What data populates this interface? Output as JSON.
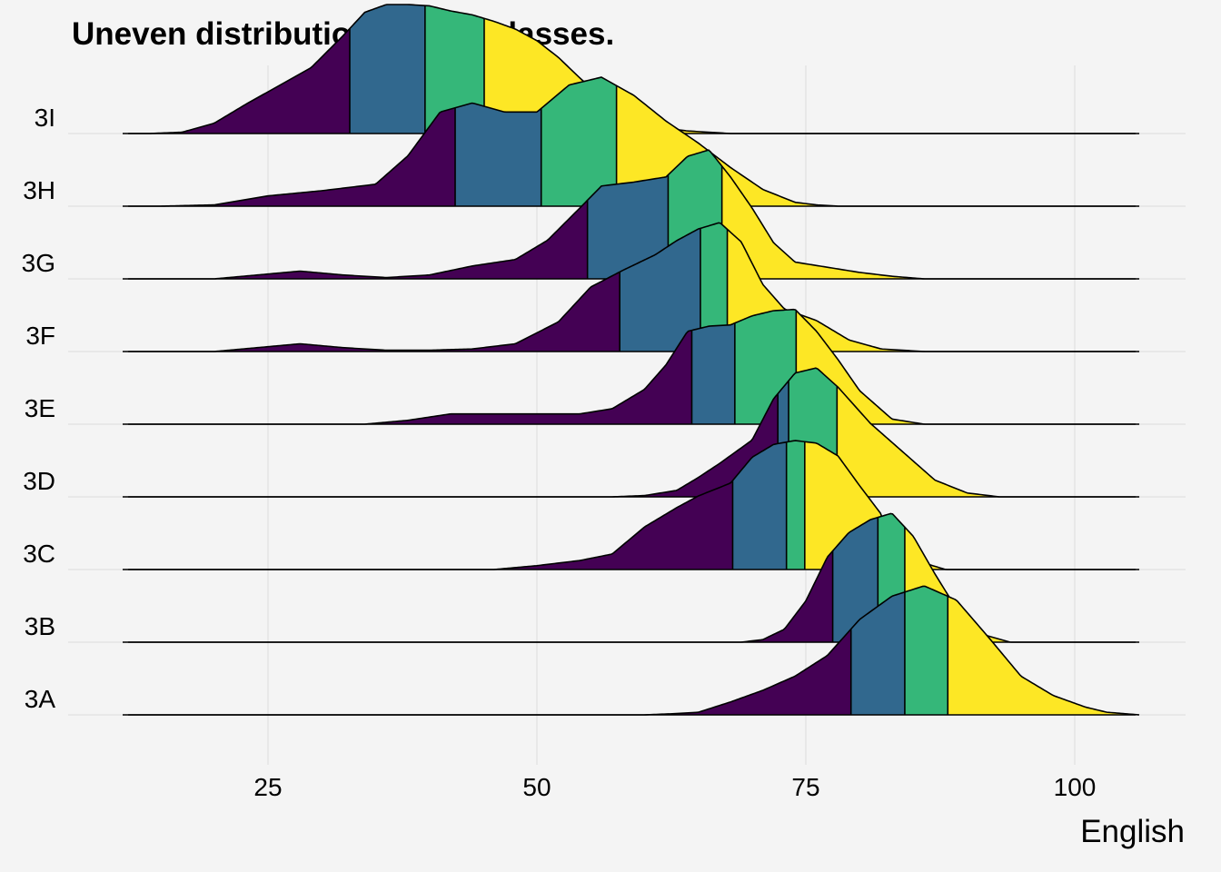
{
  "chart_data": {
    "type": "area",
    "subtype": "ridgeline",
    "title": "Uneven distribution across classes.",
    "xlabel": "English",
    "ylabel": "",
    "xlim": [
      5,
      106
    ],
    "x_ticks": [
      25,
      50,
      75,
      100
    ],
    "grid": true,
    "legend": "none",
    "colors": [
      "#440154",
      "#31688e",
      "#35b779",
      "#fde725"
    ],
    "axis_color": "#000000",
    "grid_color": "#e3e3e3",
    "background": "#f4f4f4",
    "categories": [
      "3A",
      "3B",
      "3C",
      "3D",
      "3E",
      "3F",
      "3G",
      "3H",
      "3I"
    ],
    "series": [
      {
        "name": "3A",
        "quartiles": [
          79.2,
          84.2,
          88.2
        ],
        "x": [
          12,
          60,
          63,
          65,
          68,
          71,
          74,
          77,
          80,
          83,
          86,
          89,
          92,
          95,
          98,
          101,
          103,
          106
        ],
        "density": [
          0,
          0,
          0.01,
          0.02,
          0.1,
          0.19,
          0.3,
          0.46,
          0.74,
          0.92,
          1.0,
          0.89,
          0.6,
          0.3,
          0.15,
          0.06,
          0.02,
          0
        ]
      },
      {
        "name": "3B",
        "quartiles": [
          77.5,
          81.7,
          84.2
        ],
        "x": [
          12,
          69,
          71,
          73,
          75,
          77,
          79,
          81,
          83,
          85,
          87,
          89,
          91,
          94,
          106
        ],
        "density": [
          0,
          0,
          0.02,
          0.1,
          0.32,
          0.66,
          0.85,
          0.95,
          1.0,
          0.82,
          0.53,
          0.26,
          0.07,
          0,
          0
        ]
      },
      {
        "name": "3C",
        "quartiles": [
          68.2,
          73.2,
          74.9
        ],
        "x": [
          12,
          46,
          50,
          54,
          57,
          60,
          63,
          65,
          68,
          70,
          72,
          74,
          76,
          78,
          80,
          82,
          83,
          86,
          88,
          106
        ],
        "density": [
          0,
          0,
          0.03,
          0.07,
          0.12,
          0.33,
          0.48,
          0.57,
          0.67,
          0.87,
          0.97,
          1.0,
          0.98,
          0.88,
          0.65,
          0.43,
          0.17,
          0.05,
          0,
          0
        ]
      },
      {
        "name": "3D",
        "quartiles": [
          72.4,
          73.4,
          77.9
        ],
        "x": [
          12,
          57,
          60,
          63,
          65,
          67,
          70,
          72,
          74,
          76,
          78,
          81,
          84,
          87,
          90,
          93,
          106
        ],
        "density": [
          0,
          0,
          0.01,
          0.05,
          0.15,
          0.26,
          0.44,
          0.76,
          0.96,
          1.0,
          0.85,
          0.57,
          0.35,
          0.13,
          0.03,
          0,
          0
        ]
      },
      {
        "name": "3E",
        "quartiles": [
          64.4,
          68.4,
          74.1
        ],
        "x": [
          12,
          34,
          38,
          42,
          46,
          50,
          54,
          57,
          60,
          62,
          64,
          66,
          68,
          70,
          72,
          74,
          76,
          78,
          80,
          83,
          86,
          106
        ],
        "density": [
          0,
          0,
          0.03,
          0.08,
          0.08,
          0.08,
          0.08,
          0.12,
          0.27,
          0.46,
          0.72,
          0.76,
          0.77,
          0.84,
          0.88,
          0.89,
          0.72,
          0.5,
          0.26,
          0.04,
          0,
          0
        ]
      },
      {
        "name": "3F",
        "quartiles": [
          57.7,
          65.2,
          67.7
        ],
        "x": [
          12,
          20,
          24,
          28,
          32,
          36,
          40,
          44,
          48,
          52,
          55,
          58,
          61,
          63,
          65,
          67,
          69,
          71,
          73,
          76,
          79,
          82,
          86,
          106
        ],
        "density": [
          0,
          0,
          0.03,
          0.06,
          0.03,
          0.01,
          0.01,
          0.02,
          0.06,
          0.23,
          0.5,
          0.63,
          0.75,
          0.86,
          0.95,
          1.0,
          0.85,
          0.52,
          0.33,
          0.24,
          0.09,
          0.02,
          0,
          0
        ]
      },
      {
        "name": "3G",
        "quartiles": [
          54.7,
          62.2,
          67.2
        ],
        "x": [
          12,
          20,
          24,
          28,
          32,
          36,
          40,
          44,
          48,
          51,
          54,
          56,
          59,
          62,
          64,
          66,
          68,
          70,
          72,
          74,
          77,
          80,
          83,
          86,
          106
        ],
        "density": [
          0,
          0,
          0.03,
          0.06,
          0.03,
          0.01,
          0.03,
          0.1,
          0.15,
          0.3,
          0.55,
          0.72,
          0.75,
          0.79,
          0.95,
          1.0,
          0.79,
          0.55,
          0.28,
          0.13,
          0.09,
          0.05,
          0.02,
          0,
          0
        ]
      },
      {
        "name": "3H",
        "quartiles": [
          42.4,
          50.4,
          57.4
        ],
        "x": [
          12,
          15,
          20,
          25,
          30,
          35,
          38,
          41,
          44,
          47,
          50,
          53,
          56,
          59,
          62,
          65,
          68,
          71,
          74,
          76,
          78,
          106
        ],
        "density": [
          0,
          0,
          0.01,
          0.08,
          0.12,
          0.17,
          0.39,
          0.73,
          0.8,
          0.73,
          0.73,
          0.94,
          1.0,
          0.86,
          0.66,
          0.49,
          0.3,
          0.13,
          0.03,
          0.01,
          0,
          0
        ]
      },
      {
        "name": "3I",
        "quartiles": [
          32.6,
          39.6,
          45.1
        ],
        "x": [
          12,
          14,
          17,
          20,
          23,
          26,
          29,
          32,
          34,
          36,
          38,
          40,
          42,
          44,
          46,
          48,
          50,
          52,
          54,
          56,
          58,
          60,
          62,
          64,
          66,
          68,
          106
        ],
        "density": [
          0,
          0,
          0.01,
          0.08,
          0.23,
          0.37,
          0.51,
          0.76,
          0.94,
          1.0,
          1.0,
          0.99,
          0.95,
          0.92,
          0.87,
          0.81,
          0.72,
          0.59,
          0.43,
          0.28,
          0.16,
          0.08,
          0.04,
          0.02,
          0.01,
          0,
          0
        ]
      }
    ]
  }
}
